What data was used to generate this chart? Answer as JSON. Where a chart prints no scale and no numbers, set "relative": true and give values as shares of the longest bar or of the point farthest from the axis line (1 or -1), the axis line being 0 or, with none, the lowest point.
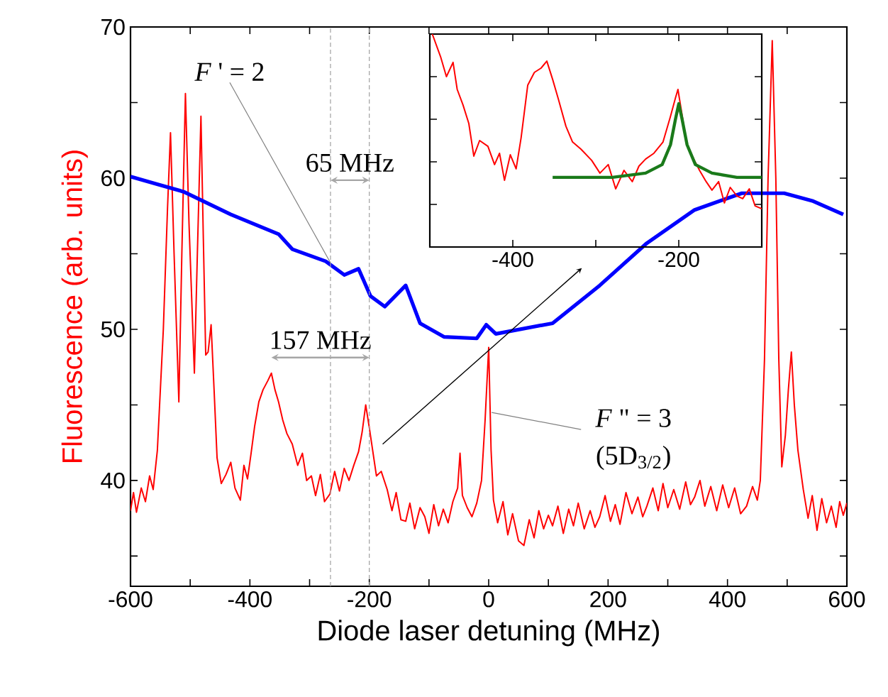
{
  "chart_data": [
    {
      "type": "line",
      "xlabel": "Diode laser detuning (MHz)",
      "ylabel": "Fluorescence (arb. units)",
      "xlim": [
        -600,
        600
      ],
      "ylim": [
        33,
        70
      ],
      "xticks": [
        -600,
        {
          "value": -500,
          "label": null
        },
        -400,
        {
          "value": -300,
          "label": null
        },
        -200,
        {
          "value": -100,
          "label": null
        },
        0,
        {
          "value": 100,
          "label": null
        },
        200,
        {
          "value": 300,
          "label": null
        },
        400,
        {
          "value": 500,
          "label": null
        },
        600
      ],
      "yticks": [
        {
          "value": 35,
          "label": null
        },
        40,
        {
          "value": 45,
          "label": null
        },
        50,
        {
          "value": 55,
          "label": null
        },
        60,
        {
          "value": 65,
          "label": null
        },
        70
      ],
      "ref_lines": [
        {
          "axis": "x",
          "value": -265,
          "color": "#a0a0a0",
          "line_style": "dashed"
        },
        {
          "axis": "x",
          "value": -200,
          "color": "#a0a0a0",
          "line_style": "dashed"
        }
      ],
      "annotations": [
        {
          "text": "*F* ' = 2",
          "x": -265,
          "y": 54.4
        },
        "65 MHz",
        {
          "text": "157 MHz",
          "x": -364,
          "y": 47.1
        },
        {
          "text": "*F* \" = 3",
          "x": 5,
          "y": 44.5
        },
        "(5D$_{3/2}$)"
      ],
      "series": [
        {
          "color": "#ff0000",
          "x": [
            -600,
            -595,
            -590,
            -582,
            -575,
            -568,
            -562,
            -555,
            -545,
            -538,
            -533,
            -527,
            -519,
            -514,
            -508,
            -502,
            -493,
            -488,
            -482,
            -478,
            -474,
            -470,
            -465,
            -460,
            -455,
            -448,
            -440,
            -432,
            -425,
            -416,
            -410,
            -404,
            -398,
            -392,
            -385,
            -378,
            -370,
            -364,
            -358,
            -352,
            -345,
            -338,
            -329,
            -320,
            -312,
            -305,
            -297,
            -290,
            -282,
            -275,
            -266,
            -258,
            -250,
            -242,
            -234,
            -226,
            -218,
            -212,
            -206,
            -200,
            -194,
            -188,
            -180,
            -170,
            -162,
            -155,
            -147,
            -139,
            -132,
            -124,
            -115,
            -107,
            -100,
            -92,
            -84,
            -76,
            -68,
            -60,
            -52,
            -48,
            -44,
            -36,
            -28,
            -20,
            -12,
            -6,
            0,
            4,
            8,
            15,
            24,
            32,
            40,
            50,
            59,
            68,
            76,
            84,
            92,
            100,
            107,
            116,
            125,
            134,
            142,
            150,
            160,
            170,
            178,
            186,
            195,
            204,
            212,
            220,
            230,
            240,
            250,
            258,
            265,
            275,
            284,
            292,
            300,
            310,
            320,
            330,
            338,
            345,
            354,
            362,
            372,
            382,
            392,
            402,
            412,
            422,
            432,
            442,
            450,
            455,
            462,
            468,
            475,
            481,
            486,
            491,
            497,
            502,
            507,
            512,
            518,
            527,
            535,
            542,
            550,
            558,
            566,
            574,
            582,
            588,
            594,
            600
          ],
          "values": [
            38.0,
            39.2,
            37.9,
            39.5,
            38.6,
            40.3,
            39.4,
            42,
            50,
            58,
            63.0,
            55,
            45.2,
            55,
            65.6,
            57,
            47.1,
            55,
            64.1,
            56,
            48.3,
            48.5,
            50.3,
            46,
            41.5,
            39.8,
            40.4,
            41.2,
            39.5,
            38.7,
            41.0,
            40.1,
            41.8,
            43.6,
            45.2,
            46.0,
            46.6,
            47.1,
            46.0,
            45.2,
            44.0,
            43.1,
            42.4,
            41.0,
            41.8,
            40.0,
            40.3,
            39.0,
            40.4,
            38.6,
            39.1,
            40.6,
            39.3,
            40.8,
            40.0,
            41.0,
            41.9,
            43.2,
            45.0,
            43.5,
            41.9,
            40.3,
            40.6,
            39.4,
            38.0,
            39.2,
            37.4,
            37.3,
            38.5,
            36.8,
            38.2,
            37.6,
            36.5,
            38.4,
            37.0,
            38.1,
            37.2,
            38.6,
            39.5,
            41.8,
            39.0,
            38.2,
            37.6,
            38.5,
            40.0,
            44,
            48.8,
            42,
            38.7,
            37.2,
            38.6,
            36.4,
            37.8,
            36.0,
            35.7,
            37.4,
            36.2,
            38.0,
            36.8,
            37.7,
            37.0,
            38.3,
            36.5,
            38.1,
            37.0,
            38.5,
            36.8,
            38.0,
            36.9,
            37.6,
            39.0,
            37.3,
            38.4,
            37.1,
            39.2,
            37.8,
            38.9,
            37.6,
            38.3,
            39.5,
            38.0,
            39.8,
            38.2,
            39.4,
            38.1,
            39.9,
            38.4,
            38.9,
            40.0,
            38.3,
            39.6,
            38.0,
            39.7,
            38.2,
            39.5,
            37.8,
            38.3,
            39.6,
            38.7,
            40.0,
            48,
            60,
            69.1,
            60,
            48,
            40.9,
            43,
            46,
            48.5,
            45,
            42,
            39.4,
            37.5,
            39.0,
            36.7,
            38.8,
            37.2,
            38.3,
            36.9,
            38.6,
            37.7,
            38.5
          ]
        },
        {
          "color": "#0000ff",
          "x": [
            -600,
            -511,
            -432,
            -352,
            -329,
            -273,
            -242,
            -218,
            -198,
            -174,
            -139,
            -115,
            -75,
            -20,
            -4,
            12,
            107,
            186,
            265,
            345,
            424,
            495,
            542,
            594
          ],
          "values": [
            60.1,
            59.1,
            57.6,
            56.3,
            55.3,
            54.5,
            53.6,
            54.0,
            52.2,
            51.5,
            52.9,
            50.4,
            49.5,
            49.4,
            50.3,
            49.7,
            50.4,
            52.9,
            55.7,
            57.9,
            59.0,
            59.0,
            58.5,
            57.6
          ]
        }
      ]
    },
    {
      "type": "line",
      "relative": true,
      "xlim": [
        -500,
        -100
      ],
      "tick_labels": "x",
      "xticks": [
        -400,
        {
          "value": -300,
          "label": null
        },
        -200
      ],
      "series": [
        {
          "color": "#ff0000",
          "x": [
            -497,
            -487,
            -480,
            -472,
            -467,
            -460,
            -453,
            -447,
            -440,
            -430,
            -422,
            -416,
            -410,
            -403,
            -396,
            -390,
            -382,
            -374,
            -366,
            -359,
            -352,
            -345,
            -336,
            -328,
            -318,
            -305,
            -295,
            -285,
            -276,
            -266,
            -256,
            -248,
            -240,
            -230,
            -219,
            -210,
            -204,
            -201,
            -196,
            -191,
            -182,
            -175,
            -168,
            -160,
            -152,
            -145,
            -138,
            -130,
            -123,
            -115,
            -108,
            -100
          ],
          "values": [
            1.0,
            0.893,
            0.8,
            0.867,
            0.74,
            0.667,
            0.58,
            0.427,
            0.5,
            0.473,
            0.387,
            0.44,
            0.313,
            0.433,
            0.367,
            0.513,
            0.76,
            0.82,
            0.84,
            0.873,
            0.787,
            0.693,
            0.567,
            0.493,
            0.46,
            0.407,
            0.347,
            0.387,
            0.273,
            0.36,
            0.307,
            0.38,
            0.413,
            0.44,
            0.493,
            0.613,
            0.7,
            0.74,
            0.62,
            0.493,
            0.413,
            0.36,
            0.313,
            0.267,
            0.307,
            0.207,
            0.28,
            0.24,
            0.227,
            0.273,
            0.193,
            0.18
          ]
        },
        {
          "color": "#1a7a1a",
          "x": [
            -352,
            -280,
            -240,
            -220,
            -210,
            -204,
            -200,
            -196,
            -190,
            -180,
            -160,
            -130,
            -100
          ],
          "values": [
            0.327,
            0.327,
            0.347,
            0.387,
            0.48,
            0.6,
            0.673,
            0.6,
            0.48,
            0.387,
            0.347,
            0.327,
            0.327
          ]
        }
      ]
    }
  ]
}
